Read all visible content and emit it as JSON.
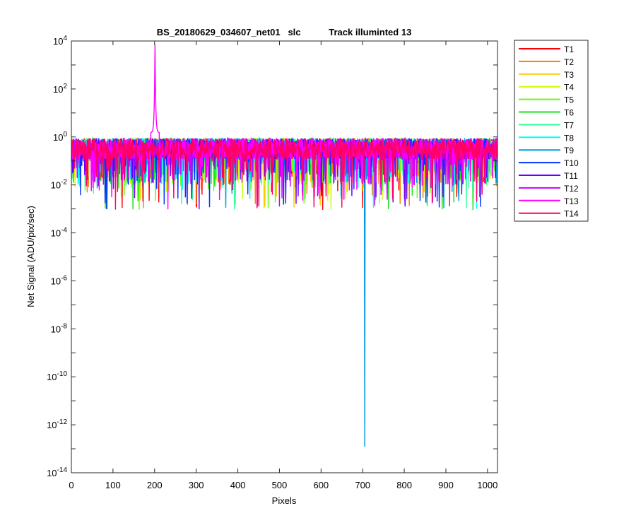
{
  "chart_data": {
    "type": "line",
    "title": "BS_20180629_034607_net01   slc           Track illuminted 13",
    "xlabel": "Pixels",
    "ylabel": "Net Signal (ADU/pix/sec)",
    "xlim": [
      0,
      1024
    ],
    "ylim": [
      1e-14,
      10000
    ],
    "yscale": "log",
    "grid": false,
    "legend_position": "outside-top-right",
    "x_ticks": [
      0,
      100,
      200,
      300,
      400,
      500,
      600,
      700,
      800,
      900,
      1000
    ],
    "y_ticks": [
      {
        "base": "10",
        "exp": "-14",
        "value": 1e-14
      },
      {
        "base": "10",
        "exp": "-12",
        "value": 1e-12
      },
      {
        "base": "10",
        "exp": "-10",
        "value": 1e-10
      },
      {
        "base": "10",
        "exp": "-8",
        "value": 1e-08
      },
      {
        "base": "10",
        "exp": "-6",
        "value": 1e-06
      },
      {
        "base": "10",
        "exp": "-4",
        "value": 0.0001
      },
      {
        "base": "10",
        "exp": "-2",
        "value": 0.01
      },
      {
        "base": "10",
        "exp": "0",
        "value": 1
      },
      {
        "base": "10",
        "exp": "2",
        "value": 100
      },
      {
        "base": "10",
        "exp": "4",
        "value": 10000
      }
    ],
    "series": [
      {
        "name": "T1",
        "color": "#ff0000",
        "baseline": 0.3
      },
      {
        "name": "T2",
        "color": "#ff7f00",
        "baseline": 0.3
      },
      {
        "name": "T3",
        "color": "#ffcc00",
        "baseline": 0.3
      },
      {
        "name": "T4",
        "color": "#ccff00",
        "baseline": 0.3
      },
      {
        "name": "T5",
        "color": "#66ff00",
        "baseline": 0.3
      },
      {
        "name": "T6",
        "color": "#19e619",
        "baseline": 0.3
      },
      {
        "name": "T7",
        "color": "#33ff99",
        "baseline": 0.3
      },
      {
        "name": "T8",
        "color": "#00ffff",
        "baseline": 0.3
      },
      {
        "name": "T9",
        "color": "#0099e6",
        "baseline": 0.3,
        "notable_points": [
          [
            705,
            1.2e-13
          ]
        ]
      },
      {
        "name": "T10",
        "color": "#0033ff",
        "baseline": 0.3
      },
      {
        "name": "T11",
        "color": "#6600ff",
        "baseline": 0.3
      },
      {
        "name": "T12",
        "color": "#cc00ff",
        "baseline": 0.3
      },
      {
        "name": "T13",
        "color": "#ff00ff",
        "baseline": 0.3,
        "notable_points": [
          [
            201,
            7000
          ]
        ]
      },
      {
        "name": "T14",
        "color": "#ff0066",
        "baseline": 0.3
      }
    ]
  }
}
